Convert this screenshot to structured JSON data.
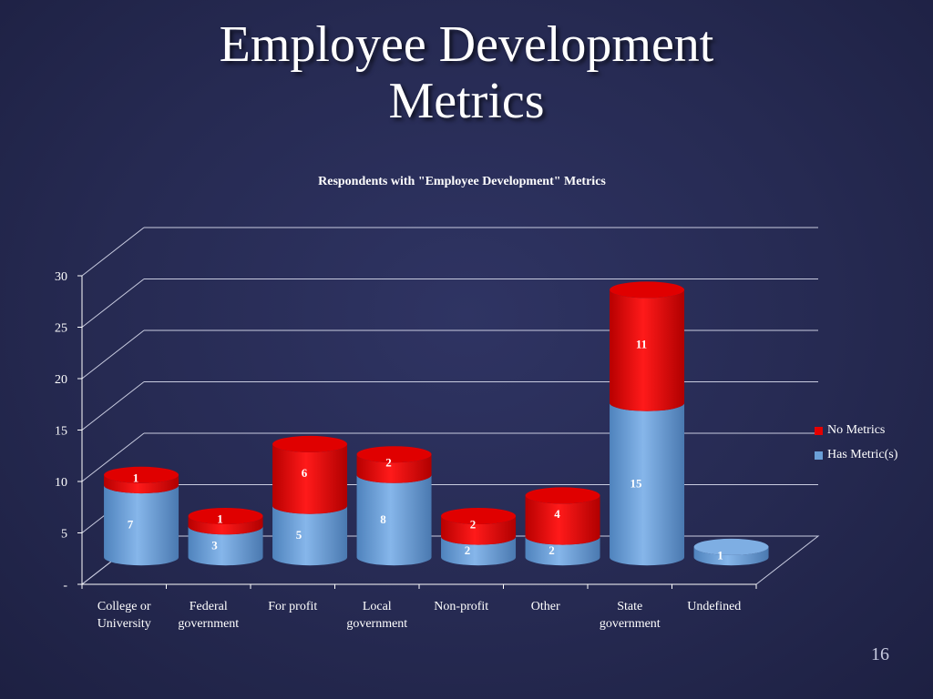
{
  "slide": {
    "title_line1": "Employee Development",
    "title_line2": "Metrics",
    "page_number": "16"
  },
  "colors": {
    "has_metric": "#6a9fd8",
    "no_metrics": "#e50000"
  },
  "chart_data": {
    "type": "bar",
    "stacked": true,
    "style": "3d-cylinder",
    "title": "Respondents with \"Employee Development\" Metrics",
    "categories": [
      "College or University",
      "Federal government",
      "For profit",
      "Local government",
      "Non-profit",
      "Other",
      "State government",
      "Undefined"
    ],
    "category_labels": [
      [
        "College or",
        "University"
      ],
      [
        "Federal",
        "government"
      ],
      [
        "For profit"
      ],
      [
        "Local",
        "government"
      ],
      [
        "Non-profit"
      ],
      [
        "Other"
      ],
      [
        "State",
        "government"
      ],
      [
        "Undefined"
      ]
    ],
    "series": [
      {
        "name": "Has Metric(s)",
        "values": [
          7,
          3,
          5,
          8,
          2,
          2,
          15,
          1
        ]
      },
      {
        "name": "No Metrics",
        "values": [
          1,
          1,
          6,
          2,
          2,
          4,
          11,
          0
        ]
      }
    ],
    "y_ticks": [
      "-",
      "5",
      "10",
      "15",
      "20",
      "25",
      "30"
    ],
    "ylim": [
      0,
      30
    ],
    "grid": true,
    "legend_position": "right"
  }
}
